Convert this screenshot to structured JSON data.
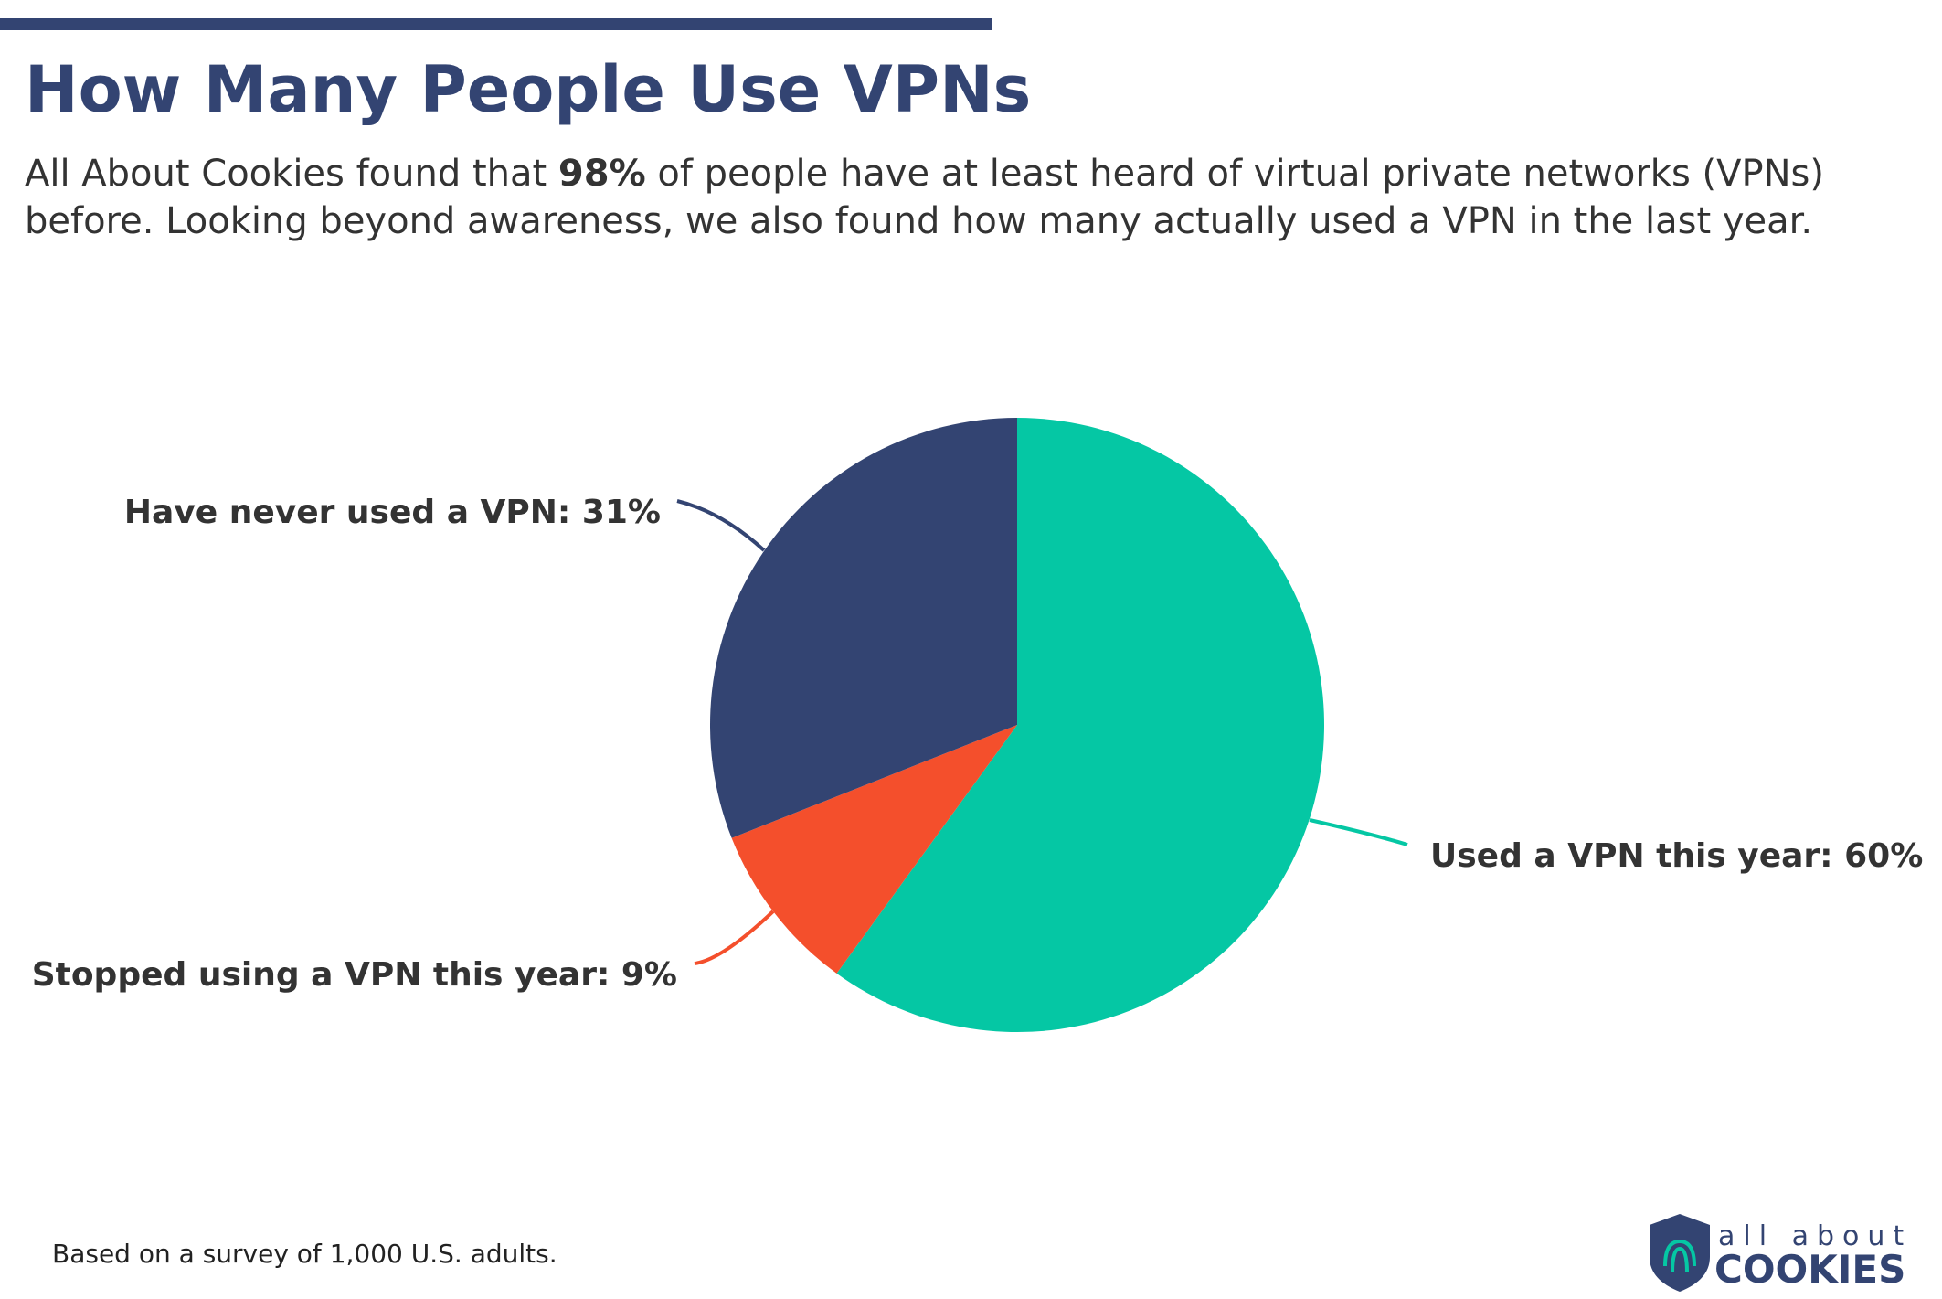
{
  "chart_data": {
    "type": "pie",
    "title": "How Many People Use VPNs",
    "subtitle": [
      "All About Cookies found that ",
      "98%",
      " of people have at least heard of virtual private networks (VPNs)",
      "before. Looking beyond awareness, we also found how many actually used a VPN in the last year."
    ],
    "labels": [
      "Used a VPN this year: 60%",
      "Stopped using a VPN this year: 9%",
      "Have never used a VPN: 31%"
    ],
    "values": [
      60,
      9,
      31
    ],
    "colors": [
      "#05c7a4",
      "#f44f2c",
      "#334472"
    ],
    "footnote": "Based on a survey of 1,000 U.S. adults.",
    "logo": [
      "all about",
      "COOKIES"
    ]
  }
}
